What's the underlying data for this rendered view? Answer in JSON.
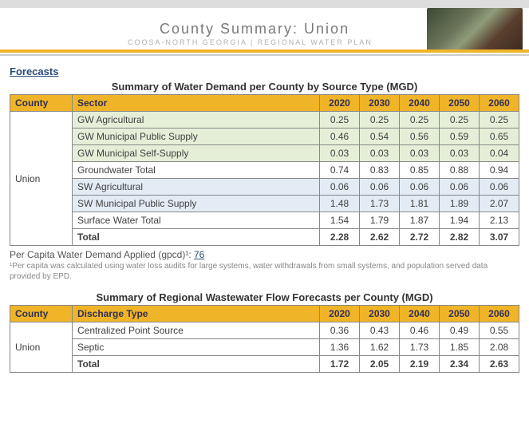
{
  "banner": {
    "title": "County Summary: Union",
    "subtitle": "COOSA-NORTH GEORGIA | REGIONAL WATER PLAN"
  },
  "forecasts_label": "Forecasts",
  "colors": {
    "header_bg": "#f0b429",
    "green_row": "#e5efd8",
    "blue_row": "#e3ecf4",
    "border": "#888888"
  },
  "demand_table": {
    "title": "Summary of Water Demand per County by Source Type (MGD)",
    "col_county": "County",
    "col_sector": "Sector",
    "years": [
      "2020",
      "2030",
      "2040",
      "2050",
      "2060"
    ],
    "county": "Union",
    "rows": [
      {
        "sector": "GW Agricultural",
        "vals": [
          "0.25",
          "0.25",
          "0.25",
          "0.25",
          "0.25"
        ],
        "shade": "green"
      },
      {
        "sector": "GW Municipal Public Supply",
        "vals": [
          "0.46",
          "0.54",
          "0.56",
          "0.59",
          "0.65"
        ],
        "shade": "green"
      },
      {
        "sector": "GW Municipal Self-Supply",
        "vals": [
          "0.03",
          "0.03",
          "0.03",
          "0.03",
          "0.04"
        ],
        "shade": "green"
      },
      {
        "sector": "Groundwater Total",
        "vals": [
          "0.74",
          "0.83",
          "0.85",
          "0.88",
          "0.94"
        ],
        "shade": "white"
      },
      {
        "sector": "SW Agricultural",
        "vals": [
          "0.06",
          "0.06",
          "0.06",
          "0.06",
          "0.06"
        ],
        "shade": "blue"
      },
      {
        "sector": "SW Municipal Public Supply",
        "vals": [
          "1.48",
          "1.73",
          "1.81",
          "1.89",
          "2.07"
        ],
        "shade": "blue"
      },
      {
        "sector": "Surface Water Total",
        "vals": [
          "1.54",
          "1.79",
          "1.87",
          "1.94",
          "2.13"
        ],
        "shade": "white"
      },
      {
        "sector": "Total",
        "vals": [
          "2.28",
          "2.62",
          "2.72",
          "2.82",
          "3.07"
        ],
        "shade": "total"
      }
    ]
  },
  "note": {
    "prefix": "Per Capita Water Demand Applied (gpcd)¹: ",
    "value": "76"
  },
  "footnote": "¹Per capita was calculated using water loss audits for large systems, water withdrawals from small systems, and population served data provided by EPD.",
  "ww_table": {
    "title": "Summary of Regional Wastewater Flow Forecasts per County (MGD)",
    "col_county": "County",
    "col_sector": "Discharge Type",
    "years": [
      "2020",
      "2030",
      "2040",
      "2050",
      "2060"
    ],
    "county": "Union",
    "rows": [
      {
        "sector": "Centralized Point Source",
        "vals": [
          "0.36",
          "0.43",
          "0.46",
          "0.49",
          "0.55"
        ],
        "shade": "white"
      },
      {
        "sector": "Septic",
        "vals": [
          "1.36",
          "1.62",
          "1.73",
          "1.85",
          "2.08"
        ],
        "shade": "white"
      },
      {
        "sector": "Total",
        "vals": [
          "1.72",
          "2.05",
          "2.19",
          "2.34",
          "2.63"
        ],
        "shade": "total"
      }
    ]
  }
}
